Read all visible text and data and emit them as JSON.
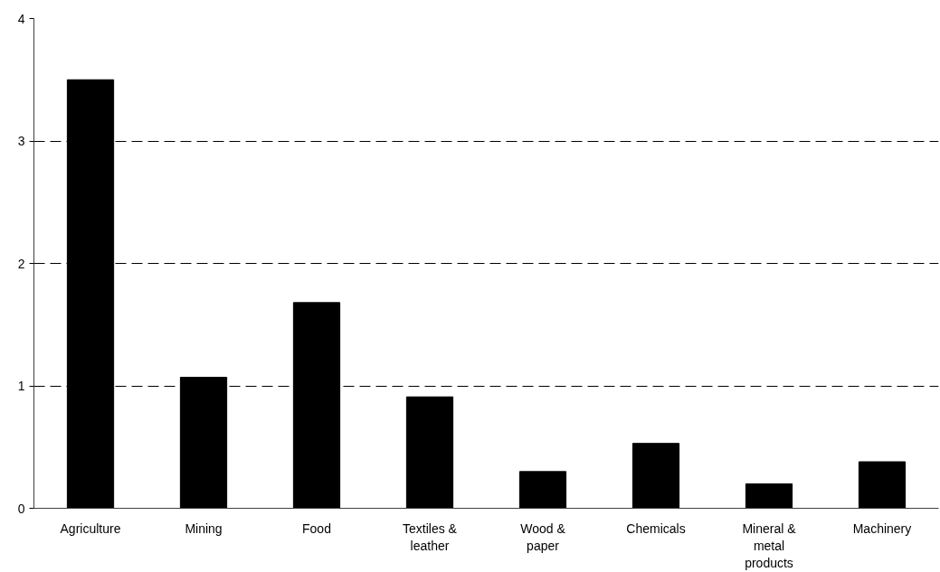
{
  "chart_data": {
    "type": "bar",
    "categories": [
      "Agriculture",
      "Mining",
      "Food",
      "Textiles & leather",
      "Wood & paper",
      "Chemicals",
      "Mineral & metal products",
      "Machinery"
    ],
    "values": [
      3.5,
      1.07,
      1.68,
      0.91,
      0.3,
      0.53,
      0.2,
      0.38
    ],
    "color": "#000000",
    "ylim": [
      0,
      4
    ],
    "yticks": [
      0,
      1,
      2,
      3,
      4
    ],
    "grid": "y"
  }
}
